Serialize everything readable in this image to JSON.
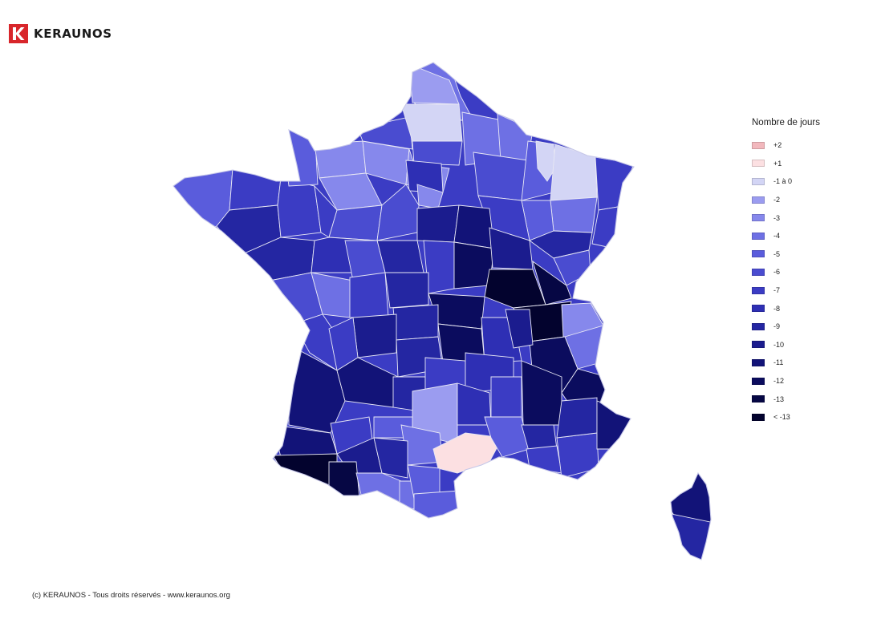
{
  "brand": {
    "name": "KERAUNOS",
    "color": "#d8262b"
  },
  "legend": {
    "title": "Nombre de jours",
    "items": [
      {
        "label": "+2",
        "color": "#f2b8bd"
      },
      {
        "label": "+1",
        "color": "#fce0e2"
      },
      {
        "label": "-1 à 0",
        "color": "#d3d5f5"
      },
      {
        "label": "-2",
        "color": "#9b9cf0"
      },
      {
        "label": "-3",
        "color": "#8688ec"
      },
      {
        "label": "-4",
        "color": "#6e70e4"
      },
      {
        "label": "-5",
        "color": "#5a5cdc"
      },
      {
        "label": "-6",
        "color": "#4a4cd0"
      },
      {
        "label": "-7",
        "color": "#3b3cc4"
      },
      {
        "label": "-8",
        "color": "#2e2fb4"
      },
      {
        "label": "-9",
        "color": "#2426a2"
      },
      {
        "label": "-10",
        "color": "#1b1c8e"
      },
      {
        "label": "-11",
        "color": "#121378"
      },
      {
        "label": "-12",
        "color": "#0b0c5e"
      },
      {
        "label": "-13",
        "color": "#060744"
      },
      {
        "label": "< -13",
        "color": "#03032e"
      }
    ]
  },
  "footer": {
    "copyright": "(c) KERAUNOS - Tous droits réservés - www.keraunos.org"
  }
}
